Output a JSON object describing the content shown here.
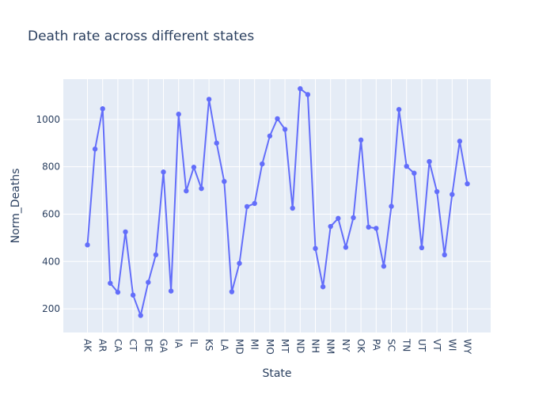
{
  "chart_data": {
    "type": "line",
    "title": "Death rate across different states",
    "xlabel": "State",
    "ylabel": "Norm_Deaths",
    "ylim": [
      100,
      1170
    ],
    "yticks": [
      200,
      400,
      600,
      800,
      1000
    ],
    "grid": true,
    "mode": "lines+markers",
    "colors": {
      "series": "#636efa",
      "plot_bg": "#e5ecf6",
      "grid": "#ffffff",
      "text": "#2a3f5f"
    },
    "x_tick_labels": [
      "AK",
      "AR",
      "CA",
      "CT",
      "DE",
      "GA",
      "IA",
      "IL",
      "KS",
      "LA",
      "MD",
      "MI",
      "MO",
      "MT",
      "ND",
      "NH",
      "NM",
      "NY",
      "OK",
      "PA",
      "SC",
      "TN",
      "UT",
      "VT",
      "WI",
      "WY"
    ],
    "series": [
      {
        "values": [
          470,
          875,
          1045,
          308,
          270,
          525,
          258,
          172,
          312,
          428,
          778,
          275,
          1022,
          698,
          798,
          708,
          1085,
          900,
          738,
          272,
          392,
          632,
          645,
          812,
          930,
          1003,
          958,
          625,
          1130,
          1105,
          455,
          293,
          548,
          582,
          460,
          585,
          913,
          545,
          540,
          380,
          633,
          1042,
          802,
          773,
          458,
          822,
          695,
          428,
          683,
          908,
          728
        ]
      }
    ]
  }
}
